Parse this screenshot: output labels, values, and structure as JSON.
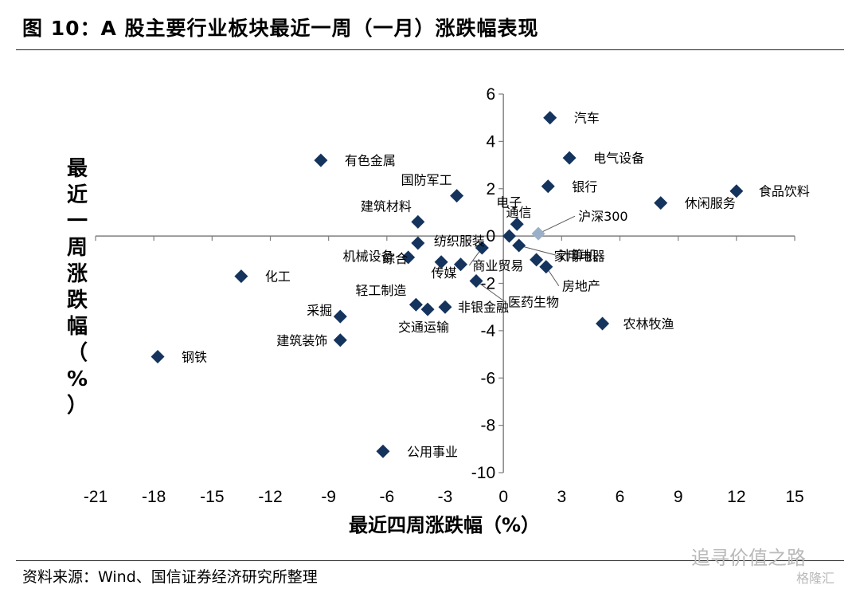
{
  "title": "图  10：A 股主要行业板块最近一周（一月）涨跌幅表现",
  "source": "资料来源：Wind、国信证券经济研究所整理",
  "watermark": "追寻价值之路",
  "watermark2": "格隆汇",
  "colors": {
    "point": "#14345e",
    "benchmark": "#9ab0c8",
    "axis": "#7f7f7f",
    "leader": "#595959"
  },
  "chart_data": {
    "type": "scatter",
    "title": "",
    "xlabel": "最近四周涨跌幅（%）",
    "ylabel": "最近一周涨跌幅（%）",
    "xlim": [
      -21,
      15
    ],
    "ylim": [
      -10,
      6
    ],
    "xticks": [
      -21,
      -18,
      -15,
      -12,
      -9,
      -6,
      -3,
      0,
      3,
      6,
      9,
      12,
      15
    ],
    "yticks": [
      -10,
      -8,
      -6,
      -4,
      -2,
      0,
      2,
      4,
      6
    ],
    "grid": false,
    "points": [
      {
        "name": "汽车",
        "x": 2.4,
        "y": 5.0
      },
      {
        "name": "电气设备",
        "x": 3.4,
        "y": 3.3
      },
      {
        "name": "有色金属",
        "x": -9.4,
        "y": 3.2
      },
      {
        "name": "银行",
        "x": 2.3,
        "y": 2.1
      },
      {
        "name": "国防军工",
        "x": -2.4,
        "y": 1.7
      },
      {
        "name": "食品饮料",
        "x": 12.0,
        "y": 1.9
      },
      {
        "name": "休闲服务",
        "x": 8.1,
        "y": 1.4
      },
      {
        "name": "电子",
        "x": 0.7,
        "y": 0.5
      },
      {
        "name": "建筑材料",
        "x": -4.4,
        "y": 0.6
      },
      {
        "name": "通信",
        "x": 0.3,
        "y": 0.0
      },
      {
        "name": "沪深300",
        "x": 1.8,
        "y": 0.1,
        "benchmark": true
      },
      {
        "name": "纺织服装",
        "x": -4.4,
        "y": -0.3
      },
      {
        "name": "机械设备",
        "x": -4.9,
        "y": -0.9
      },
      {
        "name": "综合",
        "x": -3.2,
        "y": -1.1
      },
      {
        "name": "计算机",
        "x": 0.8,
        "y": -0.4
      },
      {
        "name": "商业贸易",
        "x": -1.1,
        "y": -0.5
      },
      {
        "name": "家用电器",
        "x": 1.7,
        "y": -1.0
      },
      {
        "name": "房地产",
        "x": 2.2,
        "y": -1.3
      },
      {
        "name": "化工",
        "x": -13.5,
        "y": -1.7
      },
      {
        "name": "传媒",
        "x": -2.2,
        "y": -1.2
      },
      {
        "name": "医药生物",
        "x": -1.4,
        "y": -1.9
      },
      {
        "name": "轻工制造",
        "x": -4.5,
        "y": -2.9
      },
      {
        "name": "非银金融",
        "x": -3.0,
        "y": -3.0
      },
      {
        "name": "交通运输",
        "x": -3.9,
        "y": -3.1
      },
      {
        "name": "采掘",
        "x": -8.4,
        "y": -3.4
      },
      {
        "name": "建筑装饰",
        "x": -8.4,
        "y": -4.4
      },
      {
        "name": "农林牧渔",
        "x": 5.1,
        "y": -3.7
      },
      {
        "name": "钢铁",
        "x": -17.8,
        "y": -5.1
      },
      {
        "name": "公用事业",
        "x": -6.2,
        "y": -9.1
      }
    ]
  }
}
